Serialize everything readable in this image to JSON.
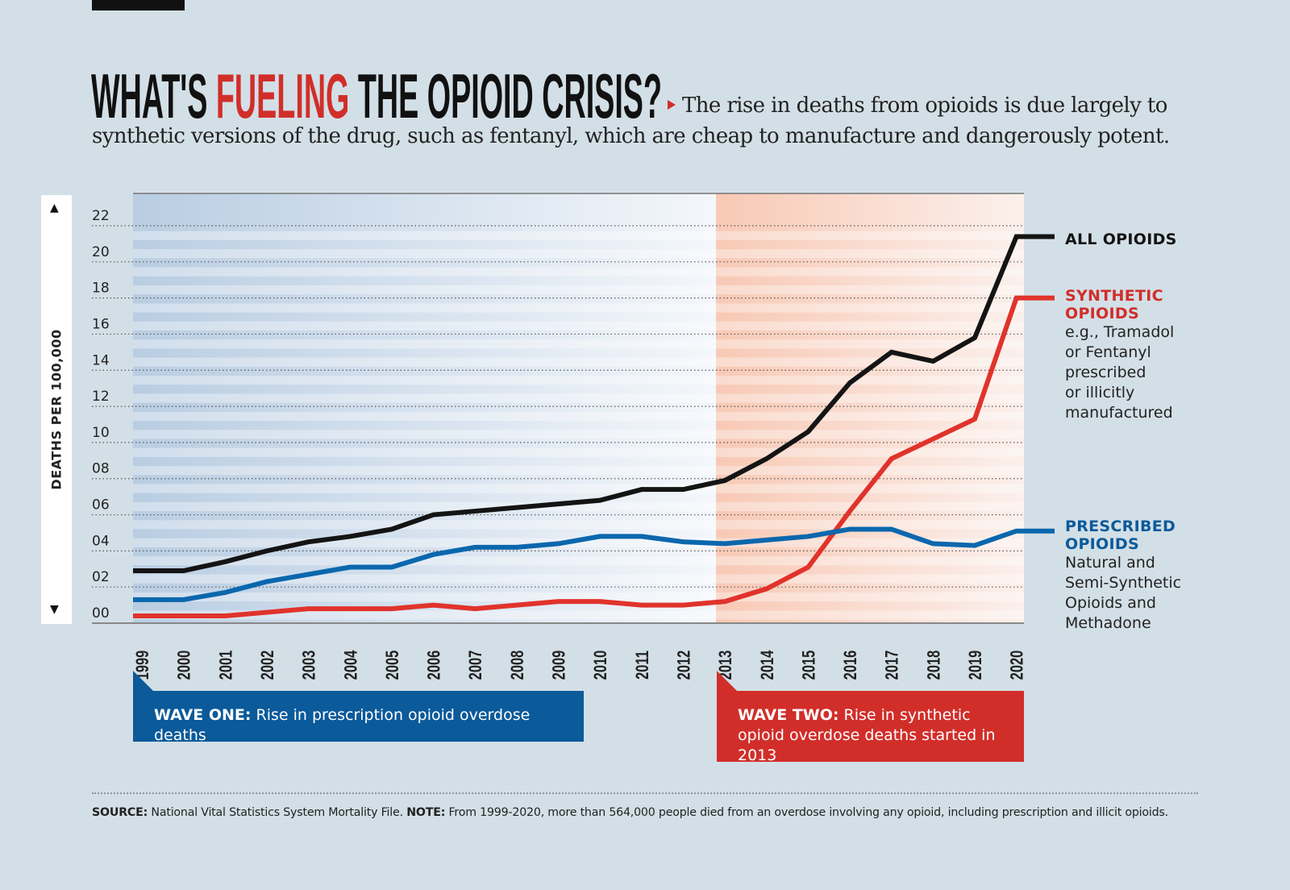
{
  "header": {
    "title_part1": "WHAT'S ",
    "title_highlight": "FUELING",
    "title_part2": " THE OPIOID CRISIS?",
    "subtitle_line1": "The rise in deaths from opioids is due largely to",
    "subtitle_line2": "synthetic versions of the drug, such as fentanyl, which are cheap to manufacture and dangerously potent."
  },
  "colors": {
    "background": "#d3dfe6",
    "all": "#141414",
    "synthetic": "#e0332b",
    "prescribed": "#0b67ad",
    "wave_one": "#0b5a9a",
    "wave_two": "#d12e2a"
  },
  "chart_data": {
    "type": "line",
    "ylabel": "DEATHS PER 100,000",
    "ylim": [
      0,
      22
    ],
    "yticks": [
      "00",
      "02",
      "04",
      "06",
      "08",
      "10",
      "12",
      "14",
      "16",
      "18",
      "20",
      "22"
    ],
    "grid": true,
    "x": [
      "1999",
      "2000",
      "2001",
      "2002",
      "2003",
      "2004",
      "2005",
      "2006",
      "2007",
      "2008",
      "2009",
      "2010",
      "2011",
      "2012",
      "2013",
      "2014",
      "2015",
      "2016",
      "2017",
      "2018",
      "2019",
      "2020"
    ],
    "series": [
      {
        "name": "ALL OPIOIDS",
        "color": "#141414",
        "values": [
          2.9,
          2.9,
          3.4,
          4.0,
          4.5,
          4.8,
          5.2,
          6.0,
          6.2,
          6.4,
          6.6,
          6.8,
          7.4,
          7.4,
          7.9,
          9.1,
          10.6,
          13.3,
          15.0,
          14.5,
          15.8,
          21.4
        ]
      },
      {
        "name": "SYNTHETIC OPIOIDS",
        "color": "#e0332b",
        "values": [
          0.4,
          0.4,
          0.4,
          0.6,
          0.8,
          0.8,
          0.8,
          1.0,
          0.8,
          1.0,
          1.2,
          1.2,
          1.0,
          1.0,
          1.2,
          1.9,
          3.1,
          6.2,
          9.1,
          10.2,
          11.3,
          18.0
        ]
      },
      {
        "name": "PRESCRIBED OPIOIDS",
        "color": "#0b67ad",
        "values": [
          1.3,
          1.3,
          1.7,
          2.3,
          2.7,
          3.1,
          3.1,
          3.8,
          4.2,
          4.2,
          4.4,
          4.8,
          4.8,
          4.5,
          4.4,
          4.6,
          4.8,
          5.2,
          5.2,
          4.4,
          4.3,
          5.1
        ]
      }
    ],
    "highlight_periods": [
      {
        "label": "WAVE ONE",
        "start": "1999",
        "end": "2013",
        "color": "#0b5a9a"
      },
      {
        "label": "WAVE TWO",
        "start": "2013",
        "end": "2020",
        "color": "#d12e2a"
      }
    ]
  },
  "legend": {
    "all": {
      "title": "ALL OPIOIDS"
    },
    "synthetic": {
      "title1": "SYNTHETIC",
      "title2": "OPIOIDS",
      "desc": [
        "e.g., Tramadol",
        "or Fentanyl",
        "prescribed",
        "or illicitly",
        "manufactured"
      ]
    },
    "prescribed": {
      "title1": "PRESCRIBED",
      "title2": "OPIOIDS",
      "desc": [
        "Natural and",
        "Semi-Synthetic",
        "Opioids and",
        "Methadone"
      ]
    }
  },
  "annotations": {
    "wave_one_label": "WAVE ONE:",
    "wave_one_text": " Rise in prescription opioid overdose deaths",
    "wave_two_label": "WAVE TWO:",
    "wave_two_text": " Rise in synthetic opioid overdose deaths started in 2013"
  },
  "footer": {
    "source_label": "SOURCE:",
    "source_text": " National Vital Statistics System Mortality File. ",
    "note_label": "NOTE:",
    "note_text": " From 1999-2020, more than 564,000 people died from an overdose involving any opioid, including prescription and illicit opioids."
  }
}
